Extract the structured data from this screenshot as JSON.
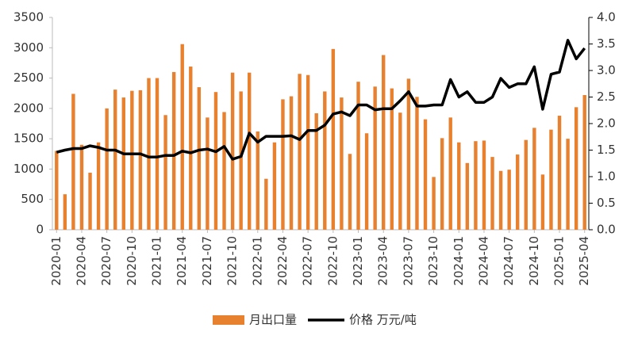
{
  "chart_data": {
    "type": "bar_line",
    "categories": [
      "2020-01",
      null,
      null,
      "2020-04",
      null,
      null,
      "2020-07",
      null,
      null,
      "2020-10",
      null,
      null,
      "2021-01",
      null,
      null,
      "2021-04",
      null,
      null,
      "2021-07",
      null,
      null,
      "2021-10",
      null,
      null,
      "2022-01",
      null,
      null,
      "2022-04",
      null,
      null,
      "2022-07",
      null,
      null,
      "2022-10",
      null,
      null,
      "2023-01",
      null,
      null,
      "2023-04",
      null,
      null,
      "2023-07",
      null,
      null,
      "2023-10",
      null,
      null,
      "2024-01",
      null,
      null,
      "2024-04",
      null,
      null,
      "2024-07",
      null,
      null,
      "2024-10",
      null,
      null,
      "2025-01",
      null,
      null,
      "2025-04"
    ],
    "series": [
      {
        "name": "月出口量",
        "color": "#e8812f",
        "values": [
          1300,
          585,
          2240,
          1400,
          940,
          1440,
          2000,
          2310,
          2180,
          2290,
          2300,
          2500,
          2500,
          1890,
          2600,
          3060,
          2690,
          2350,
          1850,
          2270,
          1940,
          2590,
          2280,
          2590,
          1620,
          840,
          1440,
          2150,
          2200,
          2570,
          2550,
          1920,
          2280,
          2980,
          2180,
          1250,
          2440,
          1590,
          2360,
          2880,
          2330,
          1930,
          2490,
          2190,
          1820,
          870,
          1510,
          1850,
          1440,
          1100,
          1460,
          1470,
          1200,
          970,
          990,
          1240,
          1480,
          1680,
          910,
          1650,
          1880,
          1500,
          2020,
          2220
        ]
      },
      {
        "name": "价格 万元/吨",
        "color": "#000000",
        "axis": "y2",
        "values": [
          1.46,
          1.5,
          1.53,
          1.53,
          1.58,
          1.55,
          1.5,
          1.5,
          1.43,
          1.43,
          1.43,
          1.37,
          1.37,
          1.4,
          1.4,
          1.48,
          1.45,
          1.5,
          1.52,
          1.47,
          1.57,
          1.33,
          1.38,
          1.82,
          1.65,
          1.76,
          1.76,
          1.76,
          1.77,
          1.7,
          1.87,
          1.87,
          1.97,
          2.18,
          2.22,
          2.15,
          2.35,
          2.35,
          2.26,
          2.28,
          2.28,
          2.43,
          2.6,
          2.33,
          2.33,
          2.35,
          2.35,
          2.83,
          2.5,
          2.6,
          2.4,
          2.4,
          2.5,
          2.85,
          2.68,
          2.75,
          2.75,
          3.07,
          2.27,
          2.93,
          2.97,
          3.57,
          3.22,
          3.42
        ]
      }
    ],
    "ylim": [
      0,
      3500
    ],
    "yticks": [
      0,
      500,
      1000,
      1500,
      2000,
      2500,
      3000,
      3500
    ],
    "y2lim": [
      0,
      4.0
    ],
    "y2ticks": [
      {
        "value": 0,
        "label": "0.0"
      },
      {
        "value": 0.5,
        "label": "0.5"
      },
      {
        "value": 1,
        "label": "1.0"
      },
      {
        "value": 1.5,
        "label": "1.5"
      },
      {
        "value": 2,
        "label": "2.0"
      },
      {
        "value": 2.5,
        "label": "2.5"
      },
      {
        "value": 3,
        "label": "3.0"
      },
      {
        "value": 3.5,
        "label": "3.5"
      },
      {
        "value": 4,
        "label": "4.0"
      }
    ],
    "legend": "bottom"
  }
}
